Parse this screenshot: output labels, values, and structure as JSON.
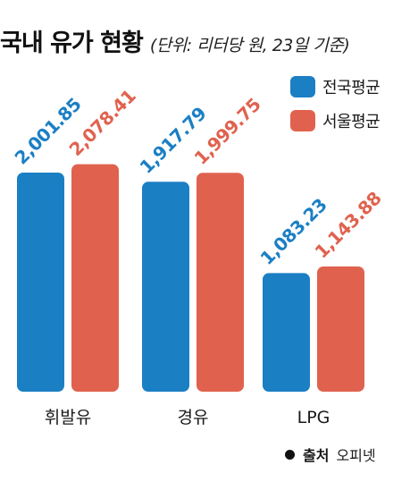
{
  "title": "국내 유가 현황",
  "subtitle": "(단위: 리터당 원, 23일 기준)",
  "legend": [
    {
      "name": "전국평균",
      "color": "#1b7fc4"
    },
    {
      "name": "서울평균",
      "color": "#e0624e"
    }
  ],
  "source": {
    "label": "출처",
    "value": "오피넷"
  },
  "chart_data": {
    "type": "bar",
    "title": "국내 유가 현황",
    "subtitle": "(단위: 리터당 원, 23일 기준)",
    "categories": [
      "휘발유",
      "경유",
      "LPG"
    ],
    "series": [
      {
        "name": "전국평균",
        "color": "#1b7fc4",
        "values": [
          2001.85,
          1917.79,
          1083.23
        ],
        "labels": [
          "2,001.85",
          "1,917.79",
          "1,083.23"
        ]
      },
      {
        "name": "서울평균",
        "color": "#e0624e",
        "values": [
          2078.41,
          1999.75,
          1143.88
        ],
        "labels": [
          "2,078.41",
          "1,999.75",
          "1,143.88"
        ]
      }
    ],
    "legend_position": "top-right",
    "grid": false
  }
}
